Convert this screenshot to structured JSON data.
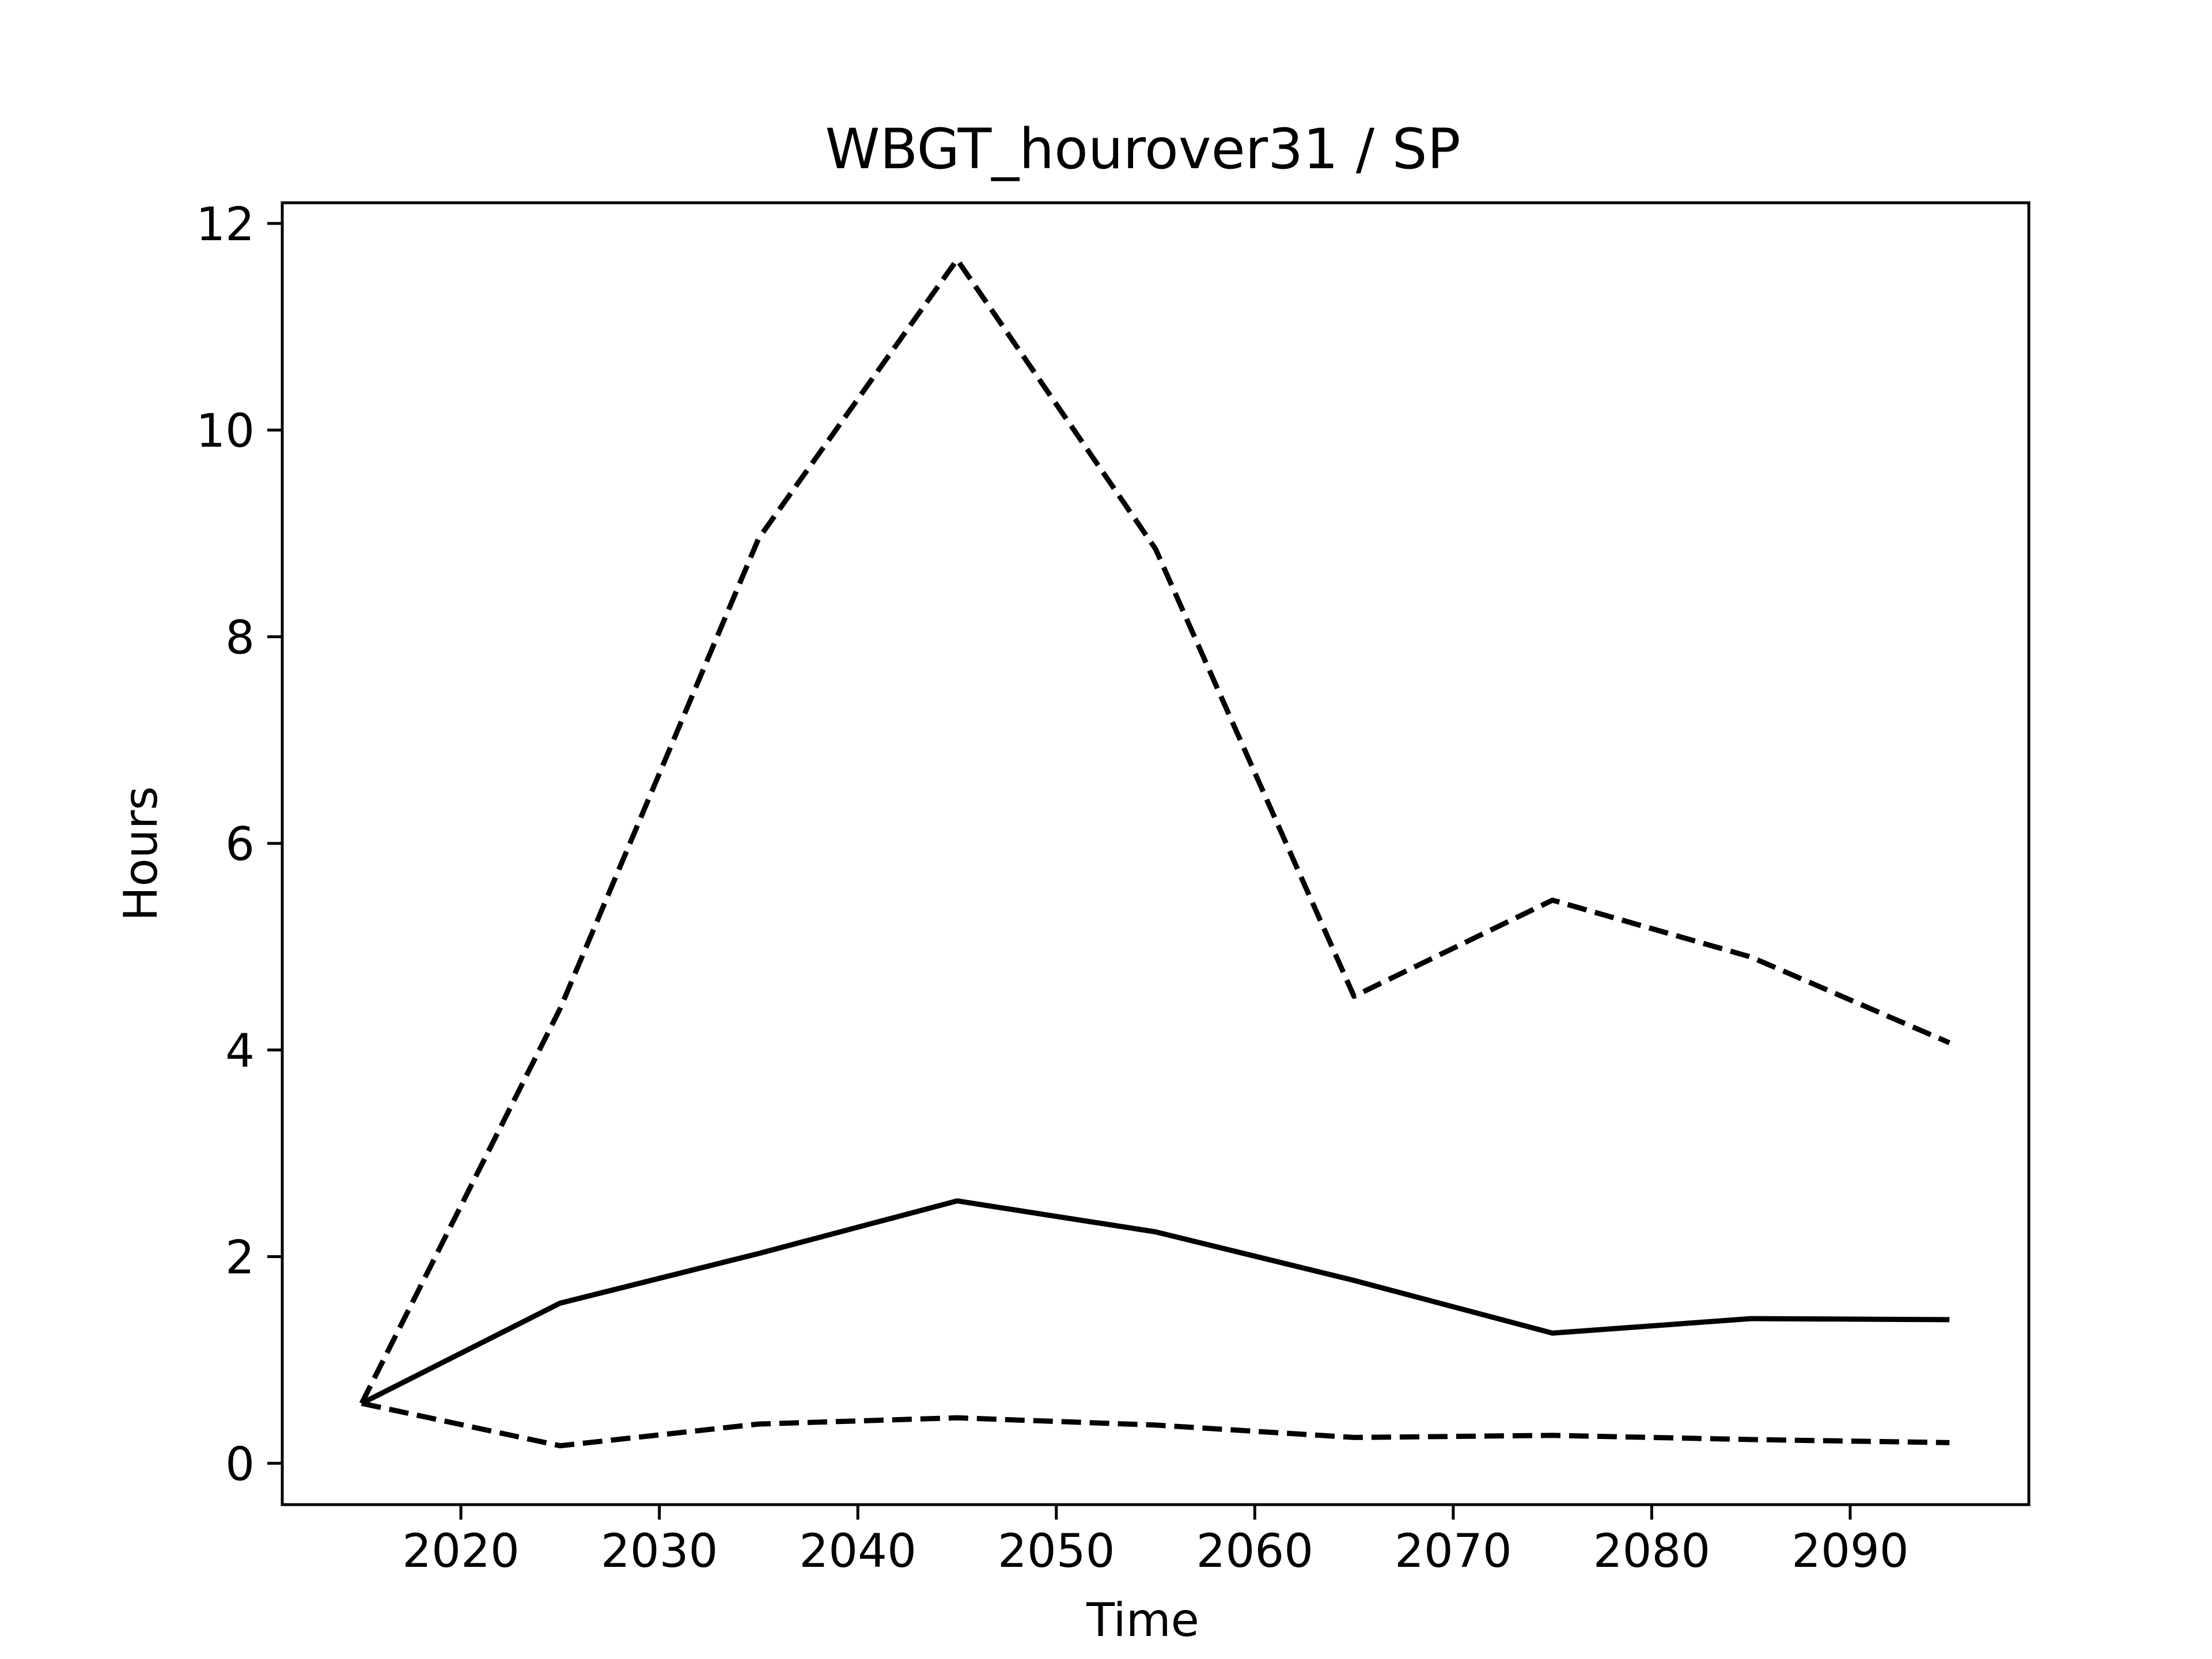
{
  "chart_data": {
    "type": "line",
    "title": "WBGT_hourover31 / SP",
    "xlabel": "Time",
    "ylabel": "Hours",
    "xlim": [
      2011,
      2099
    ],
    "ylim": [
      -0.4,
      12.2
    ],
    "xticks": [
      2020,
      2030,
      2040,
      2050,
      2060,
      2070,
      2080,
      2090
    ],
    "yticks": [
      0,
      2,
      4,
      6,
      8,
      10,
      12
    ],
    "grid": false,
    "legend": "none",
    "x": [
      2015,
      2025,
      2035,
      2045,
      2055,
      2065,
      2075,
      2085,
      2095
    ],
    "series": [
      {
        "style": "dashed",
        "color": "#000000",
        "values": [
          0.58,
          4.4,
          8.95,
          11.65,
          8.85,
          4.52,
          5.45,
          4.9,
          4.07
        ]
      },
      {
        "style": "solid",
        "color": "#000000",
        "values": [
          0.58,
          1.55,
          2.03,
          2.54,
          2.24,
          1.77,
          1.26,
          1.4,
          1.39
        ]
      },
      {
        "style": "dashed",
        "color": "#000000",
        "values": [
          0.58,
          0.17,
          0.38,
          0.44,
          0.37,
          0.25,
          0.27,
          0.23,
          0.2
        ]
      }
    ]
  }
}
